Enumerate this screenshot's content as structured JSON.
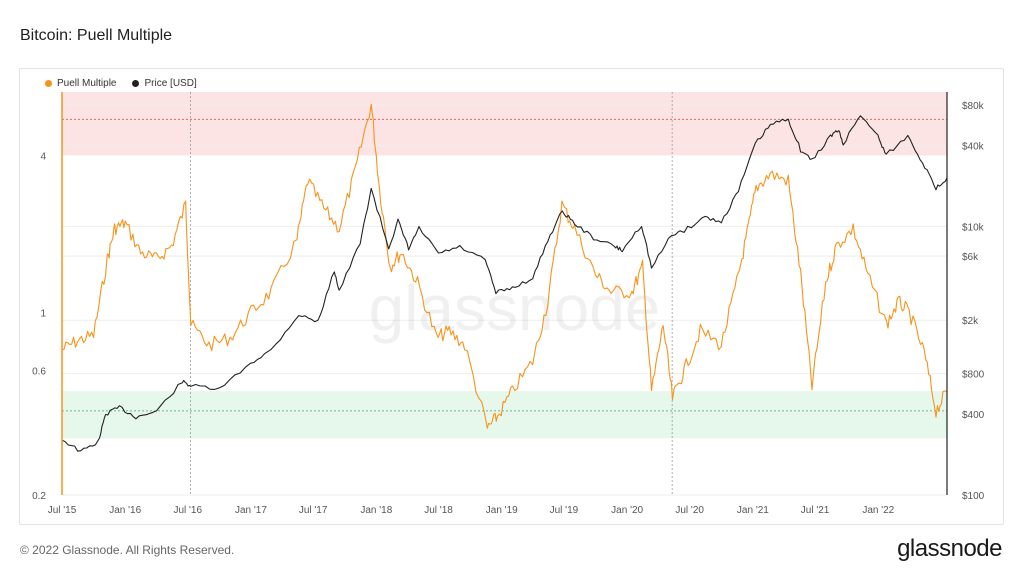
{
  "header": {
    "title": "Bitcoin: Puell Multiple"
  },
  "legend": [
    {
      "label": "Puell Multiple",
      "color": "#f7931a"
    },
    {
      "label": "Price [USD]",
      "color": "#222222"
    }
  ],
  "watermark": "glassnode",
  "footer": {
    "copyright": "© 2022 Glassnode. All Rights Reserved.",
    "logo": "glassnode"
  },
  "colors": {
    "puell": "#f7931a",
    "price": "#222222",
    "red_zone": "#fde4e4",
    "green_zone": "#e6f7ec",
    "red_line": "#e05050",
    "green_line": "#3aa86b"
  },
  "chart_data": {
    "type": "line",
    "title": "Bitcoin: Puell Multiple",
    "x_ticks": [
      "Jul '15",
      "Jan '16",
      "Jul '16",
      "Jan '17",
      "Jul '17",
      "Jan '18",
      "Jul '18",
      "Jan '19",
      "Jul '19",
      "Jan '20",
      "Jul '20",
      "Jan '21",
      "Jul '21",
      "Jan '22"
    ],
    "x_tick_dates": [
      "2015-07-01",
      "2016-01-01",
      "2016-07-01",
      "2017-01-01",
      "2017-07-01",
      "2018-01-01",
      "2018-07-01",
      "2019-01-01",
      "2019-07-01",
      "2020-01-01",
      "2020-07-01",
      "2021-01-01",
      "2021-07-01",
      "2022-01-01"
    ],
    "x_range": [
      "2015-07-01",
      "2022-07-20"
    ],
    "left_axis": {
      "scale": "log",
      "range": [
        0.2,
        7
      ],
      "ticks": [
        0.2,
        0.6,
        1,
        4
      ],
      "tick_labels": [
        "0.2",
        "0.6",
        "1",
        "4"
      ]
    },
    "right_axis": {
      "scale": "log",
      "range": [
        100,
        100000
      ],
      "ticks": [
        100,
        400,
        800,
        2000,
        6000,
        10000,
        40000,
        80000
      ],
      "tick_labels": [
        "$100",
        "$400",
        "$800",
        "$2k",
        "$6k",
        "$10k",
        "$40k",
        "$80k"
      ]
    },
    "bands": [
      {
        "name": "high",
        "range": [
          4,
          7
        ],
        "line": 5.5
      },
      {
        "name": "low",
        "range": [
          0.33,
          0.5
        ],
        "line": 0.42
      }
    ],
    "halving_lines": [
      "2016-07-09",
      "2020-05-11"
    ],
    "series": [
      {
        "name": "Puell Multiple",
        "axis": "left",
        "points": [
          [
            "2015-07-01",
            0.72
          ],
          [
            "2015-08-15",
            0.78
          ],
          [
            "2015-10-01",
            0.82
          ],
          [
            "2015-11-10",
            1.6
          ],
          [
            "2015-12-01",
            2.1
          ],
          [
            "2016-01-01",
            2.2
          ],
          [
            "2016-02-15",
            1.7
          ],
          [
            "2016-04-01",
            1.6
          ],
          [
            "2016-05-15",
            1.8
          ],
          [
            "2016-06-25",
            2.6
          ],
          [
            "2016-07-10",
            0.9
          ],
          [
            "2016-09-01",
            0.75
          ],
          [
            "2016-11-01",
            0.8
          ],
          [
            "2017-01-01",
            1.0
          ],
          [
            "2017-03-01",
            1.2
          ],
          [
            "2017-05-15",
            1.9
          ],
          [
            "2017-06-15",
            3.2
          ],
          [
            "2017-08-01",
            2.5
          ],
          [
            "2017-09-15",
            2.1
          ],
          [
            "2017-11-01",
            3.5
          ],
          [
            "2017-12-17",
            6.3
          ],
          [
            "2018-01-10",
            3.0
          ],
          [
            "2018-02-10",
            1.5
          ],
          [
            "2018-03-15",
            1.7
          ],
          [
            "2018-05-01",
            1.3
          ],
          [
            "2018-06-25",
            0.8
          ],
          [
            "2018-08-01",
            0.85
          ],
          [
            "2018-09-15",
            0.75
          ],
          [
            "2018-11-20",
            0.36
          ],
          [
            "2018-12-20",
            0.4
          ],
          [
            "2019-02-01",
            0.5
          ],
          [
            "2019-04-01",
            0.65
          ],
          [
            "2019-05-15",
            1.1
          ],
          [
            "2019-06-25",
            2.6
          ],
          [
            "2019-08-01",
            2.1
          ],
          [
            "2019-10-01",
            1.4
          ],
          [
            "2019-11-15",
            1.2
          ],
          [
            "2020-01-15",
            1.2
          ],
          [
            "2020-02-15",
            1.5
          ],
          [
            "2020-03-12",
            0.5
          ],
          [
            "2020-04-15",
            0.9
          ],
          [
            "2020-05-12",
            0.47
          ],
          [
            "2020-06-15",
            0.6
          ],
          [
            "2020-08-01",
            0.85
          ],
          [
            "2020-10-01",
            0.75
          ],
          [
            "2020-11-15",
            1.3
          ],
          [
            "2020-12-15",
            2.0
          ],
          [
            "2021-01-10",
            3.0
          ],
          [
            "2021-02-20",
            3.4
          ],
          [
            "2021-04-14",
            3.2
          ],
          [
            "2021-05-20",
            1.4
          ],
          [
            "2021-06-22",
            0.52
          ],
          [
            "2021-08-01",
            1.3
          ],
          [
            "2021-09-01",
            1.8
          ],
          [
            "2021-10-20",
            2.1
          ],
          [
            "2021-12-01",
            1.4
          ],
          [
            "2022-01-25",
            0.9
          ],
          [
            "2022-03-01",
            1.1
          ],
          [
            "2022-04-01",
            1.0
          ],
          [
            "2022-05-15",
            0.7
          ],
          [
            "2022-06-18",
            0.42
          ],
          [
            "2022-07-20",
            0.5
          ]
        ]
      },
      {
        "name": "Price [USD]",
        "axis": "right",
        "points": [
          [
            "2015-07-01",
            260
          ],
          [
            "2015-08-25",
            210
          ],
          [
            "2015-10-15",
            250
          ],
          [
            "2015-11-05",
            400
          ],
          [
            "2015-12-15",
            450
          ],
          [
            "2016-02-01",
            380
          ],
          [
            "2016-04-01",
            420
          ],
          [
            "2016-06-15",
            700
          ],
          [
            "2016-07-10",
            650
          ],
          [
            "2016-10-01",
            610
          ],
          [
            "2016-12-31",
            960
          ],
          [
            "2017-03-01",
            1200
          ],
          [
            "2017-05-20",
            2200
          ],
          [
            "2017-07-15",
            1950
          ],
          [
            "2017-09-01",
            4700
          ],
          [
            "2017-09-15",
            3300
          ],
          [
            "2017-11-15",
            7500
          ],
          [
            "2017-12-17",
            19000
          ],
          [
            "2018-02-06",
            6900
          ],
          [
            "2018-03-05",
            11000
          ],
          [
            "2018-04-05",
            6800
          ],
          [
            "2018-05-05",
            9700
          ],
          [
            "2018-07-01",
            6300
          ],
          [
            "2018-09-01",
            7000
          ],
          [
            "2018-11-14",
            5600
          ],
          [
            "2018-12-15",
            3200
          ],
          [
            "2019-02-01",
            3500
          ],
          [
            "2019-04-01",
            4100
          ],
          [
            "2019-05-15",
            7900
          ],
          [
            "2019-06-26",
            13000
          ],
          [
            "2019-08-01",
            10500
          ],
          [
            "2019-09-25",
            8200
          ],
          [
            "2019-11-25",
            7100
          ],
          [
            "2019-12-18",
            6600
          ],
          [
            "2020-02-12",
            10300
          ],
          [
            "2020-03-12",
            4900
          ],
          [
            "2020-05-10",
            8700
          ],
          [
            "2020-06-15",
            9300
          ],
          [
            "2020-08-15",
            11800
          ],
          [
            "2020-10-01",
            10700
          ],
          [
            "2020-11-20",
            18500
          ],
          [
            "2021-01-08",
            41000
          ],
          [
            "2021-02-21",
            57000
          ],
          [
            "2021-04-14",
            63000
          ],
          [
            "2021-05-20",
            37000
          ],
          [
            "2021-06-22",
            31000
          ],
          [
            "2021-08-15",
            47000
          ],
          [
            "2021-09-07",
            52000
          ],
          [
            "2021-09-21",
            41000
          ],
          [
            "2021-11-10",
            68000
          ],
          [
            "2021-12-31",
            47000
          ],
          [
            "2022-01-24",
            34000
          ],
          [
            "2022-03-28",
            47000
          ],
          [
            "2022-05-10",
            30000
          ],
          [
            "2022-06-18",
            19000
          ],
          [
            "2022-07-20",
            23000
          ]
        ]
      }
    ]
  }
}
